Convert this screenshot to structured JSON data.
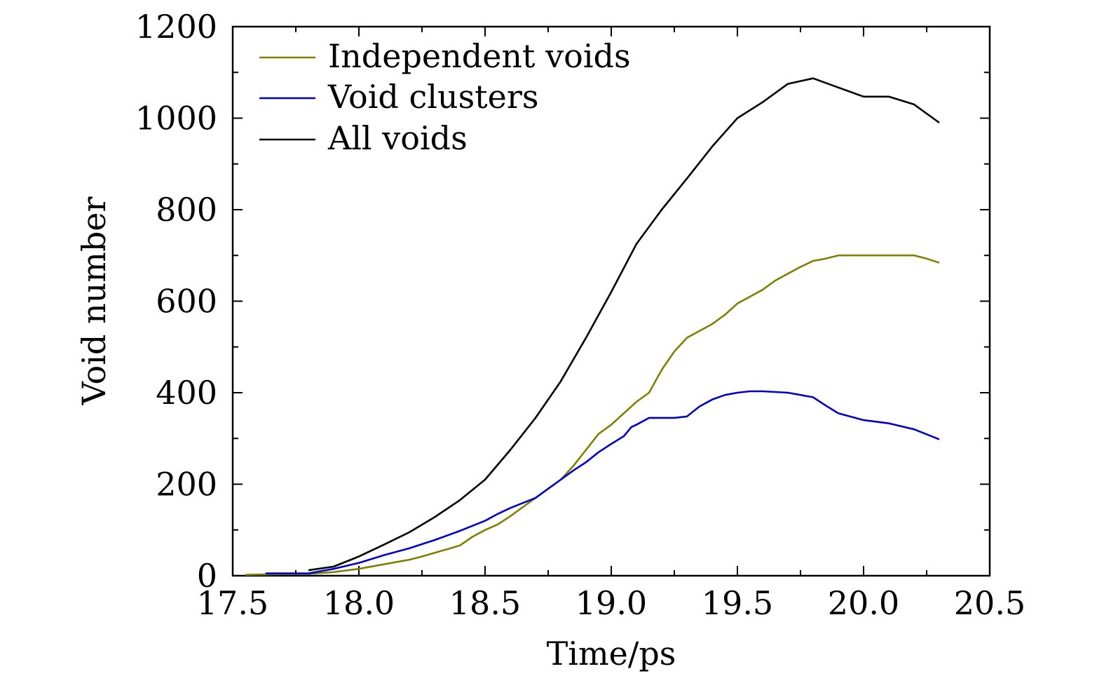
{
  "chart_data": {
    "type": "line",
    "title": "",
    "xlabel": "Time/ps",
    "ylabel": "Void number",
    "xlim": [
      17.5,
      20.5
    ],
    "ylim": [
      0,
      1200
    ],
    "xticks": [
      17.5,
      18.0,
      18.5,
      19.0,
      19.5,
      20.0,
      20.5
    ],
    "xtick_labels": [
      "17.5",
      "18.0",
      "18.5",
      "19.0",
      "19.5",
      "20.0",
      "20.5"
    ],
    "yticks": [
      0,
      200,
      400,
      600,
      800,
      1000,
      1200
    ],
    "ytick_labels": [
      "0",
      "200",
      "400",
      "600",
      "800",
      "1000",
      "1200"
    ],
    "grid": false,
    "legend_position": "top-left",
    "series": [
      {
        "name": "Independent voids",
        "color": "#808000",
        "x": [
          17.55,
          17.65,
          17.75,
          17.8,
          17.9,
          18.0,
          18.1,
          18.2,
          18.25,
          18.3,
          18.35,
          18.4,
          18.45,
          18.5,
          18.55,
          18.6,
          18.65,
          18.7,
          18.75,
          18.8,
          18.85,
          18.9,
          18.95,
          19.0,
          19.05,
          19.1,
          19.15,
          19.2,
          19.25,
          19.3,
          19.35,
          19.4,
          19.45,
          19.5,
          19.55,
          19.6,
          19.65,
          19.7,
          19.75,
          19.8,
          19.85,
          19.9,
          19.95,
          20.0,
          20.05,
          20.1,
          20.15,
          20.2,
          20.25,
          20.3
        ],
        "y": [
          2,
          3,
          4,
          4,
          8,
          15,
          25,
          35,
          42,
          50,
          58,
          66,
          85,
          100,
          112,
          130,
          150,
          170,
          190,
          210,
          240,
          275,
          310,
          330,
          355,
          380,
          400,
          450,
          490,
          520,
          535,
          550,
          570,
          595,
          610,
          625,
          645,
          660,
          675,
          688,
          693,
          700,
          700,
          700,
          700,
          700,
          700,
          700,
          693,
          684
        ]
      },
      {
        "name": "Void clusters",
        "color": "#0000cc",
        "x": [
          17.63,
          17.7,
          17.8,
          17.9,
          18.0,
          18.1,
          18.2,
          18.3,
          18.4,
          18.5,
          18.55,
          18.6,
          18.7,
          18.8,
          18.85,
          18.9,
          18.95,
          19.0,
          19.05,
          19.08,
          19.1,
          19.15,
          19.2,
          19.25,
          19.3,
          19.35,
          19.4,
          19.45,
          19.5,
          19.55,
          19.6,
          19.7,
          19.8,
          19.85,
          19.9,
          20.0,
          20.1,
          20.2,
          20.3
        ],
        "y": [
          5,
          5,
          5,
          15,
          28,
          45,
          60,
          78,
          98,
          120,
          135,
          148,
          170,
          210,
          230,
          248,
          270,
          288,
          305,
          325,
          330,
          345,
          345,
          345,
          348,
          370,
          385,
          395,
          400,
          403,
          403,
          400,
          390,
          372,
          355,
          340,
          333,
          320,
          298
        ]
      },
      {
        "name": "All voids",
        "color": "#000000",
        "x": [
          17.8,
          17.9,
          18.0,
          18.1,
          18.2,
          18.3,
          18.4,
          18.5,
          18.6,
          18.7,
          18.8,
          18.9,
          19.0,
          19.1,
          19.2,
          19.3,
          19.4,
          19.5,
          19.6,
          19.7,
          19.8,
          19.9,
          20.0,
          20.1,
          20.2,
          20.3
        ],
        "y": [
          12,
          20,
          42,
          68,
          95,
          128,
          165,
          210,
          275,
          345,
          425,
          520,
          620,
          725,
          800,
          868,
          938,
          1000,
          1035,
          1075,
          1087,
          1067,
          1047,
          1047,
          1030,
          990
        ]
      }
    ]
  }
}
